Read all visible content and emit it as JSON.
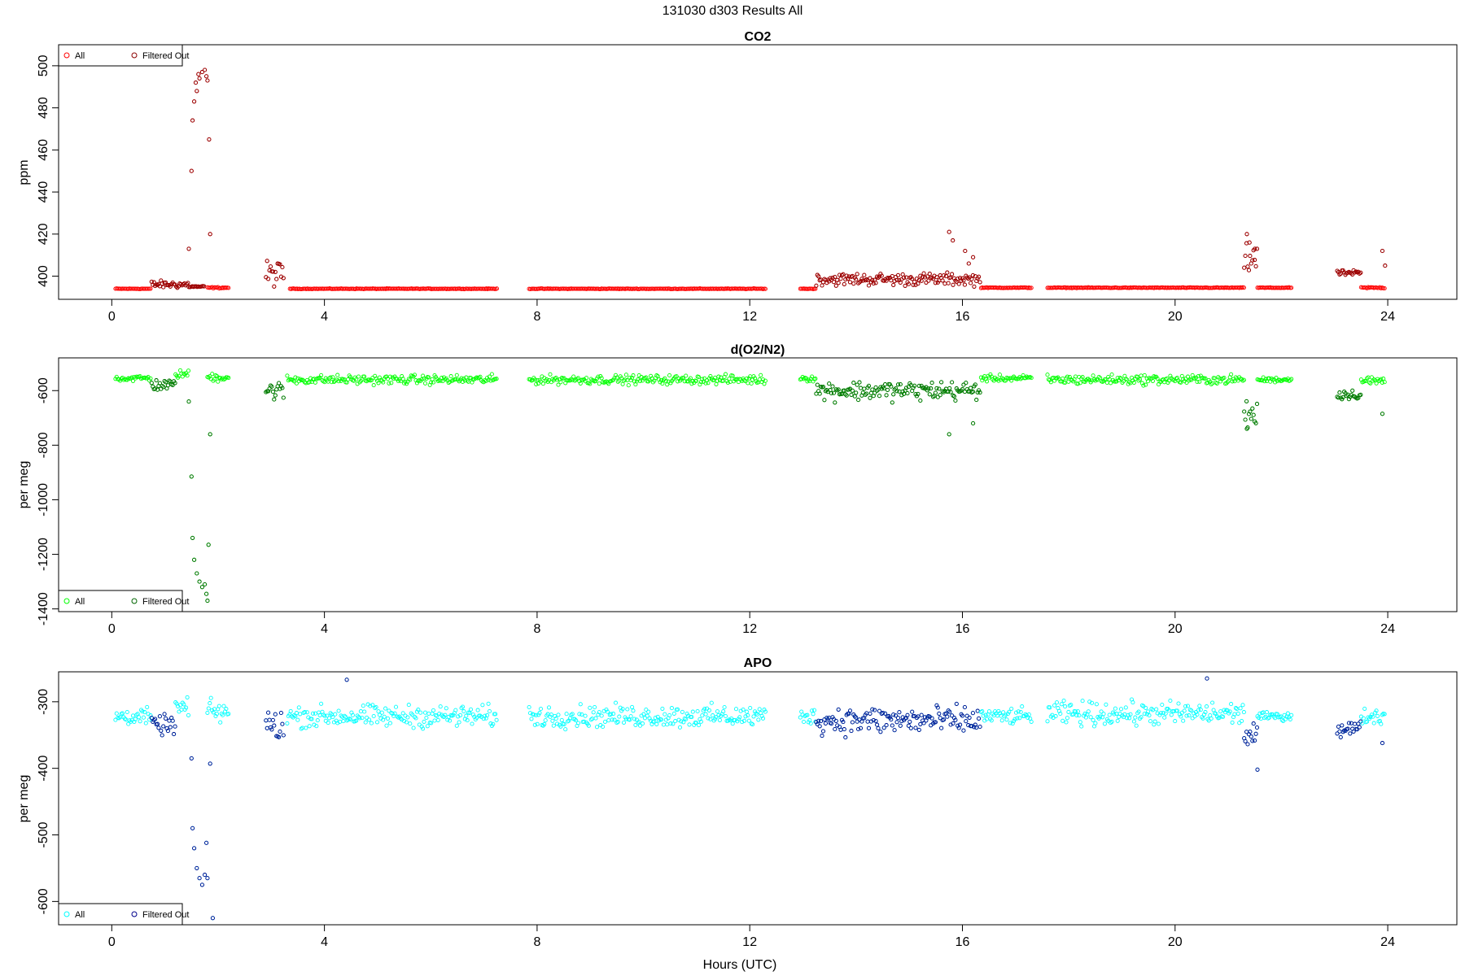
{
  "page": {
    "title": "131030   d303   Results All",
    "xlabel": "Hours (UTC)"
  },
  "chart_data": [
    {
      "type": "scatter",
      "title": "CO2",
      "xlabel": "",
      "ylabel": "ppm",
      "xlim": [
        -1.0,
        25.3
      ],
      "ylim": [
        389,
        510
      ],
      "xticks": [
        0,
        4,
        8,
        12,
        16,
        20,
        24
      ],
      "yticks": [
        400,
        420,
        440,
        460,
        480,
        500
      ],
      "colors": {
        "all": "#ff0000",
        "filtered": "#8b0000"
      },
      "legend": {
        "position": "top-left",
        "entries": [
          "All",
          "Filtered Out"
        ]
      },
      "segments": [
        {
          "x0": 0.07,
          "x1": 0.75,
          "base": 394,
          "noise": 0.15,
          "filtered": false
        },
        {
          "x0": 0.75,
          "x1": 1.45,
          "base": 396,
          "noise": 1.5,
          "filtered": true
        },
        {
          "x0": 1.45,
          "x1": 1.75,
          "base": 395,
          "noise": 0.3,
          "filtered": true
        },
        {
          "x0": 1.8,
          "x1": 2.2,
          "base": 394.5,
          "noise": 0.3,
          "filtered": false
        },
        {
          "x0": 2.9,
          "x1": 3.25,
          "base": 401,
          "noise": 5,
          "filtered": true
        },
        {
          "x0": 3.35,
          "x1": 7.25,
          "base": 394,
          "noise": 0.12,
          "filtered": false
        },
        {
          "x0": 7.85,
          "x1": 12.3,
          "base": 394,
          "noise": 0.12,
          "filtered": false
        },
        {
          "x0": 12.95,
          "x1": 13.25,
          "base": 394,
          "noise": 0.15,
          "filtered": false
        },
        {
          "x0": 13.25,
          "x1": 16.35,
          "base": 398.5,
          "noise": 2.5,
          "filtered": true
        },
        {
          "x0": 16.35,
          "x1": 17.3,
          "base": 394.5,
          "noise": 0.15,
          "filtered": false
        },
        {
          "x0": 17.6,
          "x1": 21.3,
          "base": 394.5,
          "noise": 0.15,
          "filtered": false
        },
        {
          "x0": 21.3,
          "x1": 21.55,
          "base": 408,
          "noise": 6,
          "filtered": true
        },
        {
          "x0": 21.55,
          "x1": 22.2,
          "base": 394.5,
          "noise": 0.15,
          "filtered": false
        },
        {
          "x0": 23.05,
          "x1": 23.5,
          "base": 401.5,
          "noise": 1,
          "filtered": true
        },
        {
          "x0": 23.5,
          "x1": 23.95,
          "base": 394.5,
          "noise": 0.3,
          "filtered": false
        }
      ],
      "outliers": [
        [
          1.45,
          413
        ],
        [
          1.5,
          450
        ],
        [
          1.52,
          474
        ],
        [
          1.55,
          483
        ],
        [
          1.58,
          492
        ],
        [
          1.6,
          488
        ],
        [
          1.63,
          496
        ],
        [
          1.65,
          494
        ],
        [
          1.7,
          497
        ],
        [
          1.75,
          498
        ],
        [
          1.78,
          495
        ],
        [
          1.8,
          493
        ],
        [
          1.83,
          465
        ],
        [
          1.85,
          420
        ],
        [
          15.75,
          421
        ],
        [
          15.82,
          417
        ],
        [
          16.05,
          412
        ],
        [
          16.12,
          406
        ],
        [
          16.2,
          409
        ],
        [
          21.35,
          420
        ],
        [
          21.4,
          416
        ],
        [
          21.5,
          413
        ],
        [
          23.9,
          412
        ],
        [
          23.95,
          405
        ]
      ]
    },
    {
      "type": "scatter",
      "title": "d(O2/N2)",
      "xlabel": "",
      "ylabel": "per meg",
      "xlim": [
        -1.0,
        25.3
      ],
      "ylim": [
        -1410,
        -480
      ],
      "xticks": [
        0,
        4,
        8,
        12,
        16,
        20,
        24
      ],
      "yticks": [
        -600,
        -800,
        -1000,
        -1200,
        -1400
      ],
      "colors": {
        "all": "#00ff00",
        "filtered": "#006400"
      },
      "legend": {
        "position": "bottom-left",
        "entries": [
          "All",
          "Filtered Out"
        ]
      },
      "segments": [
        {
          "x0": 0.07,
          "x1": 0.75,
          "base": -555,
          "noise": 10,
          "filtered": false
        },
        {
          "x0": 0.75,
          "x1": 1.2,
          "base": -580,
          "noise": 18,
          "filtered": true
        },
        {
          "x0": 1.2,
          "x1": 1.45,
          "base": -540,
          "noise": 12,
          "filtered": false
        },
        {
          "x0": 1.8,
          "x1": 2.2,
          "base": -550,
          "noise": 15,
          "filtered": false
        },
        {
          "x0": 2.9,
          "x1": 3.25,
          "base": -600,
          "noise": 30,
          "filtered": true
        },
        {
          "x0": 3.3,
          "x1": 7.25,
          "base": -560,
          "noise": 14,
          "filtered": false
        },
        {
          "x0": 7.85,
          "x1": 12.3,
          "base": -560,
          "noise": 14,
          "filtered": false
        },
        {
          "x0": 12.95,
          "x1": 13.25,
          "base": -555,
          "noise": 10,
          "filtered": false
        },
        {
          "x0": 13.25,
          "x1": 16.35,
          "base": -600,
          "noise": 30,
          "filtered": true
        },
        {
          "x0": 16.35,
          "x1": 17.3,
          "base": -555,
          "noise": 10,
          "filtered": false
        },
        {
          "x0": 17.6,
          "x1": 21.3,
          "base": -560,
          "noise": 15,
          "filtered": false
        },
        {
          "x0": 21.3,
          "x1": 21.55,
          "base": -690,
          "noise": 40,
          "filtered": true
        },
        {
          "x0": 21.55,
          "x1": 22.2,
          "base": -560,
          "noise": 8,
          "filtered": false
        },
        {
          "x0": 23.05,
          "x1": 23.5,
          "base": -615,
          "noise": 15,
          "filtered": true
        },
        {
          "x0": 23.5,
          "x1": 23.95,
          "base": -565,
          "noise": 15,
          "filtered": false
        }
      ],
      "outliers": [
        [
          1.45,
          -640
        ],
        [
          1.5,
          -915
        ],
        [
          1.52,
          -1140
        ],
        [
          1.55,
          -1220
        ],
        [
          1.6,
          -1270
        ],
        [
          1.65,
          -1300
        ],
        [
          1.7,
          -1320
        ],
        [
          1.75,
          -1310
        ],
        [
          1.78,
          -1345
        ],
        [
          1.8,
          -1370
        ],
        [
          1.82,
          -1165
        ],
        [
          1.85,
          -760
        ],
        [
          15.75,
          -760
        ],
        [
          16.2,
          -720
        ],
        [
          21.35,
          -740
        ],
        [
          23.9,
          -685
        ]
      ]
    },
    {
      "type": "scatter",
      "title": "APO",
      "xlabel": "Hours (UTC)",
      "ylabel": "per meg",
      "xlim": [
        -1.0,
        25.3
      ],
      "ylim": [
        -635,
        -255
      ],
      "xticks": [
        0,
        4,
        8,
        12,
        16,
        20,
        24
      ],
      "yticks": [
        -300,
        -400,
        -500,
        -600
      ],
      "colors": {
        "all": "#00ffff",
        "filtered": "#00008b"
      },
      "legend": {
        "position": "bottom-left",
        "entries": [
          "All",
          "Filtered Out"
        ]
      },
      "segments": [
        {
          "x0": 0.07,
          "x1": 0.75,
          "base": -322,
          "noise": 10,
          "filtered": false
        },
        {
          "x0": 0.75,
          "x1": 1.2,
          "base": -335,
          "noise": 12,
          "filtered": true
        },
        {
          "x0": 1.2,
          "x1": 1.45,
          "base": -310,
          "noise": 15,
          "filtered": false
        },
        {
          "x0": 1.8,
          "x1": 2.2,
          "base": -315,
          "noise": 15,
          "filtered": false
        },
        {
          "x0": 2.9,
          "x1": 3.25,
          "base": -335,
          "noise": 20,
          "filtered": true
        },
        {
          "x0": 3.3,
          "x1": 7.25,
          "base": -322,
          "noise": 14,
          "filtered": false
        },
        {
          "x0": 7.85,
          "x1": 12.3,
          "base": -322,
          "noise": 14,
          "filtered": false
        },
        {
          "x0": 12.95,
          "x1": 13.25,
          "base": -322,
          "noise": 10,
          "filtered": false
        },
        {
          "x0": 13.25,
          "x1": 16.35,
          "base": -328,
          "noise": 18,
          "filtered": true
        },
        {
          "x0": 16.35,
          "x1": 17.3,
          "base": -322,
          "noise": 10,
          "filtered": false
        },
        {
          "x0": 17.6,
          "x1": 21.3,
          "base": -318,
          "noise": 15,
          "filtered": false
        },
        {
          "x0": 21.3,
          "x1": 21.55,
          "base": -350,
          "noise": 15,
          "filtered": true
        },
        {
          "x0": 21.55,
          "x1": 22.2,
          "base": -322,
          "noise": 5,
          "filtered": false
        },
        {
          "x0": 23.05,
          "x1": 23.5,
          "base": -340,
          "noise": 10,
          "filtered": true
        },
        {
          "x0": 23.5,
          "x1": 23.95,
          "base": -322,
          "noise": 10,
          "filtered": false
        }
      ],
      "outliers": [
        [
          1.5,
          -385
        ],
        [
          1.52,
          -490
        ],
        [
          1.55,
          -520
        ],
        [
          1.6,
          -550
        ],
        [
          1.65,
          -565
        ],
        [
          1.7,
          -575
        ],
        [
          1.75,
          -560
        ],
        [
          1.78,
          -512
        ],
        [
          1.8,
          -565
        ],
        [
          1.85,
          -393
        ],
        [
          1.9,
          -625
        ],
        [
          4.42,
          -267
        ],
        [
          20.6,
          -265
        ],
        [
          21.55,
          -402
        ],
        [
          23.9,
          -362
        ]
      ]
    }
  ]
}
